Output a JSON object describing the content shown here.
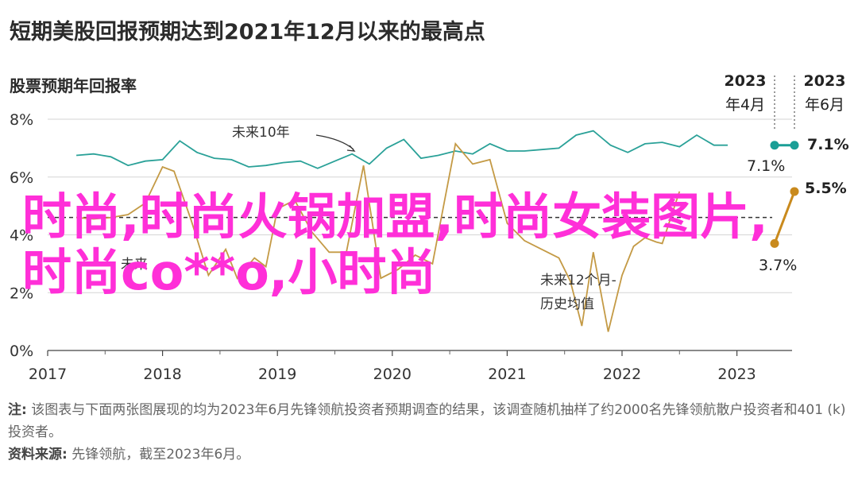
{
  "title": "短期美股回报预期达到2021年12月以来的最高点",
  "subtitle": "股票预期年回报率",
  "chart_data": {
    "type": "line",
    "ylim": [
      0,
      8
    ],
    "y_ticks": [
      "0%",
      "2%",
      "4%",
      "6%",
      "8%"
    ],
    "x_ticks": [
      "2017",
      "2018",
      "2019",
      "2020",
      "2021",
      "2022",
      "2023"
    ],
    "series": [
      {
        "name": "未来10年",
        "color": "#2aa198",
        "points": [
          [
            2017.25,
            6.75
          ],
          [
            2017.4,
            6.8
          ],
          [
            2017.55,
            6.7
          ],
          [
            2017.7,
            6.4
          ],
          [
            2017.85,
            6.55
          ],
          [
            2018.0,
            6.6
          ],
          [
            2018.15,
            7.25
          ],
          [
            2018.3,
            6.85
          ],
          [
            2018.45,
            6.65
          ],
          [
            2018.6,
            6.6
          ],
          [
            2018.75,
            6.35
          ],
          [
            2018.9,
            6.4
          ],
          [
            2019.05,
            6.5
          ],
          [
            2019.2,
            6.55
          ],
          [
            2019.35,
            6.3
          ],
          [
            2019.5,
            6.55
          ],
          [
            2019.65,
            6.8
          ],
          [
            2019.8,
            6.45
          ],
          [
            2019.95,
            7.0
          ],
          [
            2020.1,
            7.3
          ],
          [
            2020.25,
            6.65
          ],
          [
            2020.4,
            6.75
          ],
          [
            2020.55,
            6.9
          ],
          [
            2020.7,
            6.8
          ],
          [
            2020.85,
            7.15
          ],
          [
            2021.0,
            6.9
          ],
          [
            2021.15,
            6.9
          ],
          [
            2021.3,
            6.95
          ],
          [
            2021.45,
            7.0
          ],
          [
            2021.6,
            7.45
          ],
          [
            2021.75,
            7.6
          ],
          [
            2021.9,
            7.1
          ],
          [
            2022.05,
            6.85
          ],
          [
            2022.2,
            7.15
          ],
          [
            2022.35,
            7.2
          ],
          [
            2022.5,
            7.05
          ],
          [
            2022.65,
            7.45
          ],
          [
            2022.8,
            7.1
          ],
          [
            2022.92,
            7.1
          ]
        ]
      },
      {
        "name": "未来12个月",
        "color": "#c49a45",
        "points": [
          [
            2017.25,
            4.6
          ],
          [
            2017.4,
            4.55
          ],
          [
            2017.55,
            4.6
          ],
          [
            2017.7,
            4.7
          ],
          [
            2017.85,
            5.1
          ],
          [
            2018.0,
            6.35
          ],
          [
            2018.1,
            6.2
          ],
          [
            2018.25,
            4.5
          ],
          [
            2018.4,
            2.6
          ],
          [
            2018.55,
            3.5
          ],
          [
            2018.65,
            2.5
          ],
          [
            2018.8,
            3.2
          ],
          [
            2018.9,
            2.9
          ],
          [
            2019.0,
            4.9
          ],
          [
            2019.15,
            5.2
          ],
          [
            2019.3,
            4.1
          ],
          [
            2019.45,
            3.4
          ],
          [
            2019.6,
            3.4
          ],
          [
            2019.75,
            6.4
          ],
          [
            2019.9,
            2.5
          ],
          [
            2020.05,
            2.8
          ],
          [
            2020.2,
            3.3
          ],
          [
            2020.35,
            3.0
          ],
          [
            2020.55,
            7.15
          ],
          [
            2020.7,
            6.45
          ],
          [
            2020.85,
            6.6
          ],
          [
            2021.0,
            4.4
          ],
          [
            2021.15,
            3.8
          ],
          [
            2021.3,
            3.5
          ],
          [
            2021.45,
            3.2
          ],
          [
            2021.55,
            2.4
          ],
          [
            2021.65,
            0.85
          ],
          [
            2021.75,
            3.4
          ],
          [
            2021.88,
            0.65
          ],
          [
            2022.0,
            2.6
          ],
          [
            2022.1,
            3.6
          ],
          [
            2022.2,
            3.9
          ],
          [
            2022.3,
            3.75
          ],
          [
            2022.35,
            3.7
          ],
          [
            2022.5,
            5.5
          ]
        ]
      }
    ],
    "dashed_line": {
      "label": "未来12个月-历史均值",
      "value": 4.6
    },
    "annotation_period": [
      "2023年4月",
      "2023年6月"
    ],
    "labels": {
      "series1_name": "未来10年",
      "series2_name": "未来12个月-",
      "series2_name2": "历史均值",
      "year2023a": "2023",
      "month_a": "年4月",
      "year2023b": "2023",
      "month_b": "年6月",
      "teal_end": "7.1%",
      "teal_start": "7.1%",
      "gold_end": "5.5%",
      "gold_start": "3.7%",
      "short_label": "未来"
    }
  },
  "watermark": "时尚,时尚火锅加盟,时尚女装图片,时尚co**o,小时尚",
  "note_label": "注:",
  "note_text": "该图表与下面两张图展现的均为2023年6月先锋领航投资者预期调查的结果，该调查随机抽样了约2000名先锋领航散户投资者和401 (k) 投资者。",
  "source_label": "资料来源:",
  "source_text": "先锋领航，截至2023年6月。"
}
